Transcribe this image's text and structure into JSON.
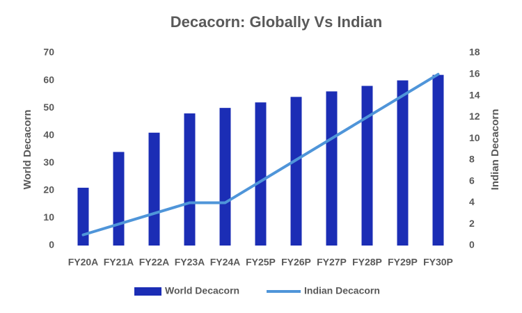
{
  "chart_data": {
    "type": "combo",
    "title": "Decacorn: Globally Vs Indian",
    "categories": [
      "FY20A",
      "FY21A",
      "FY22A",
      "FY23A",
      "FY24A",
      "FY25P",
      "FY26P",
      "FY27P",
      "FY28P",
      "FY29P",
      "FY30P"
    ],
    "series": [
      {
        "name": "World Decacorn",
        "type": "bar",
        "color": "#1b2db5",
        "values": [
          21,
          34,
          41,
          48,
          50,
          52,
          54,
          56,
          58,
          60,
          62
        ]
      },
      {
        "name": "Indian Decacorn",
        "type": "line",
        "axis": "y2",
        "color": "#4f95d9",
        "values": [
          1,
          2,
          3,
          4,
          4,
          6,
          8,
          10,
          12,
          14,
          16
        ]
      }
    ],
    "y_label": "World Decacorn",
    "y2_label": "Indian Decacorn",
    "ylim": [
      0,
      70
    ],
    "yticks": [
      0,
      10,
      20,
      30,
      40,
      50,
      60,
      70
    ],
    "y2lim": [
      0,
      18
    ],
    "y2ticks": [
      0,
      2,
      4,
      6,
      8,
      10,
      12,
      14,
      16,
      18
    ],
    "grid": false,
    "legend": "bottom"
  }
}
